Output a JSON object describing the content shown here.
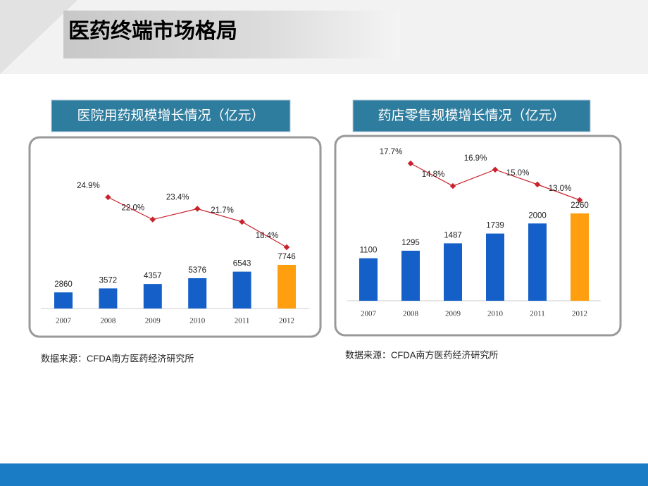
{
  "title": "医药终端市场格局",
  "chart_data": [
    {
      "type": "bar",
      "title": "医院用药规模增长情况（亿元）",
      "categories": [
        "2007",
        "2008",
        "2009",
        "2010",
        "2011",
        "2012"
      ],
      "series": [
        {
          "colors": [
            "#1560c8",
            "#1560c8",
            "#1560c8",
            "#1560c8",
            "#1560c8",
            "#ff9e0e"
          ],
          "values": [
            2860,
            3572,
            4357,
            5376,
            6543,
            7746
          ]
        },
        {
          "type": "line",
          "color": "#c8232c",
          "values": [
            null,
            24.9,
            22.0,
            23.4,
            21.7,
            18.4
          ],
          "value_labels": [
            null,
            "24.9%",
            "22.0%",
            "23.4%",
            "21.7%",
            "18.4%"
          ]
        }
      ],
      "source": "数据来源：CFDA南方医药经济研究所"
    },
    {
      "type": "bar",
      "title": "药店零售规模增长情况（亿元）",
      "categories": [
        "2007",
        "2008",
        "2009",
        "2010",
        "2011",
        "2012"
      ],
      "series": [
        {
          "colors": [
            "#1560c8",
            "#1560c8",
            "#1560c8",
            "#1560c8",
            "#1560c8",
            "#ff9e0e"
          ],
          "values": [
            1100,
            1295,
            1487,
            1739,
            2000,
            2260
          ]
        },
        {
          "type": "line",
          "color": "#c8232c",
          "values": [
            null,
            17.7,
            14.8,
            16.9,
            15.0,
            13.0
          ],
          "value_labels": [
            null,
            "17.7%",
            "14.8%",
            "16.9%",
            "15.0%",
            "13.0%"
          ]
        }
      ],
      "source": "数据来源：CFDA南方医药经济研究所"
    }
  ]
}
